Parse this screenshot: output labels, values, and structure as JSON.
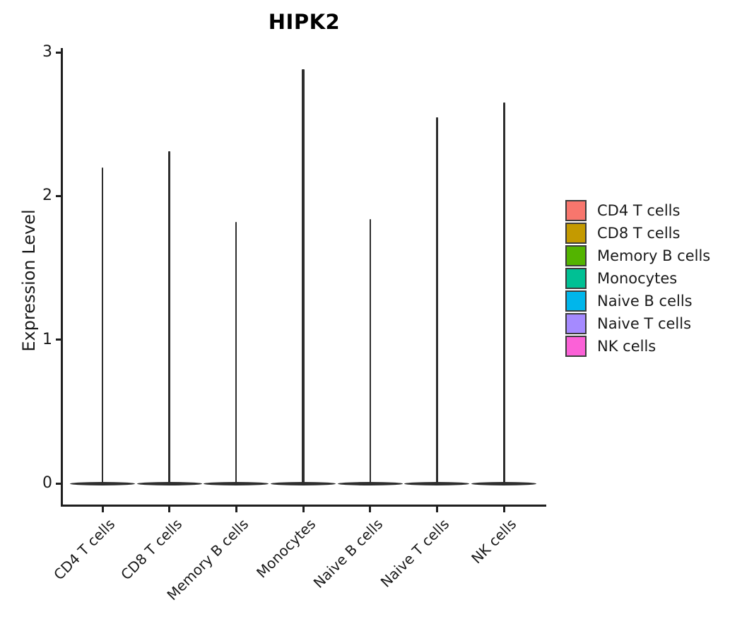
{
  "figure": {
    "title": "HIPK2",
    "ylabel": "Expression Level"
  },
  "chart_data": {
    "type": "violin",
    "title": "HIPK2",
    "xlabel": "",
    "ylabel": "Expression Level",
    "ylim": [
      0,
      3
    ],
    "yticks": [
      0,
      1,
      2,
      3
    ],
    "grid": false,
    "legend_position": "right",
    "categories": [
      "CD4 T cells",
      "CD8 T cells",
      "Memory B cells",
      "Monocytes",
      "Naive B cells",
      "Naive T cells",
      "NK cells"
    ],
    "series": [
      {
        "name": "CD4 T cells",
        "color": "#F8766D",
        "min": 0,
        "max": 2.2,
        "bulk_at": 0
      },
      {
        "name": "CD8 T cells",
        "color": "#C49A00",
        "min": 0,
        "max": 2.31,
        "bulk_at": 0
      },
      {
        "name": "Memory B cells",
        "color": "#53B400",
        "min": 0,
        "max": 1.82,
        "bulk_at": 0
      },
      {
        "name": "Monocytes",
        "color": "#00C094",
        "min": 0,
        "max": 2.88,
        "bulk_at": 0
      },
      {
        "name": "Naive B cells",
        "color": "#00B6EB",
        "min": 0,
        "max": 1.84,
        "bulk_at": 0
      },
      {
        "name": "Naive T cells",
        "color": "#A58AFF",
        "min": 0,
        "max": 2.55,
        "bulk_at": 0
      },
      {
        "name": "NK cells",
        "color": "#FB61D7",
        "min": 0,
        "max": 2.65,
        "bulk_at": 0
      }
    ],
    "legend": {
      "items": [
        {
          "label": "CD4 T cells",
          "color": "#F8766D"
        },
        {
          "label": "CD8 T cells",
          "color": "#C49A00"
        },
        {
          "label": "Memory B cells",
          "color": "#53B400"
        },
        {
          "label": "Monocytes",
          "color": "#00C094"
        },
        {
          "label": "Naive B cells",
          "color": "#00B6EB"
        },
        {
          "label": "Naive T cells",
          "color": "#A58AFF"
        },
        {
          "label": "NK cells",
          "color": "#FB61D7"
        }
      ]
    }
  }
}
